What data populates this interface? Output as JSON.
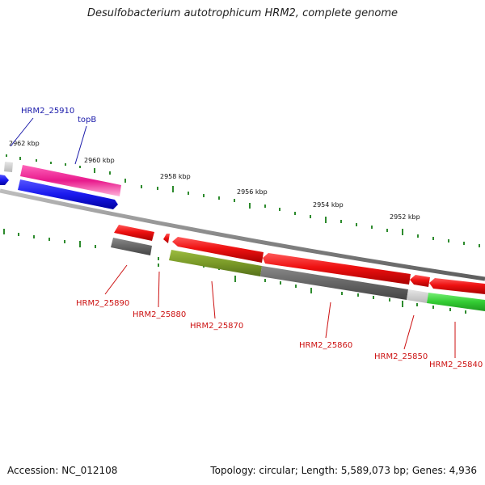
{
  "title": "Desulfobacterium autotrophicum HRM2, complete genome",
  "footer": {
    "accession": "Accession: NC_012108",
    "summary": "Topology: circular; Length: 5,589,073 bp; Genes: 4,936"
  },
  "scale_labels": [
    "2962 kbp",
    "2960 kbp",
    "2958 kbp",
    "2956 kbp",
    "2954 kbp",
    "2952 kbp"
  ],
  "gene_labels": [
    {
      "text": "HRM2_25910",
      "color": "#1a1aaa"
    },
    {
      "text": "topB",
      "color": "#1a1aaa"
    },
    {
      "text": "HRM2_25890",
      "color": "#cc1111"
    },
    {
      "text": "HRM2_25880",
      "color": "#cc1111"
    },
    {
      "text": "HRM2_25870",
      "color": "#cc1111"
    },
    {
      "text": "HRM2_25860",
      "color": "#cc1111"
    },
    {
      "text": "HRM2_25850",
      "color": "#cc1111"
    },
    {
      "text": "HRM2_25840",
      "color": "#cc1111"
    }
  ],
  "colors": {
    "backbone": "#888888",
    "ticks": "#2e8b2e",
    "forward_cds": "#e8198c",
    "forward_gene": "#1a1aee",
    "reverse_gene": "#ee1111",
    "cds_gray": "#666666",
    "cds_olive": "#7a9a28",
    "cds_green": "#33cc33",
    "cds_light": "#cccccc"
  }
}
